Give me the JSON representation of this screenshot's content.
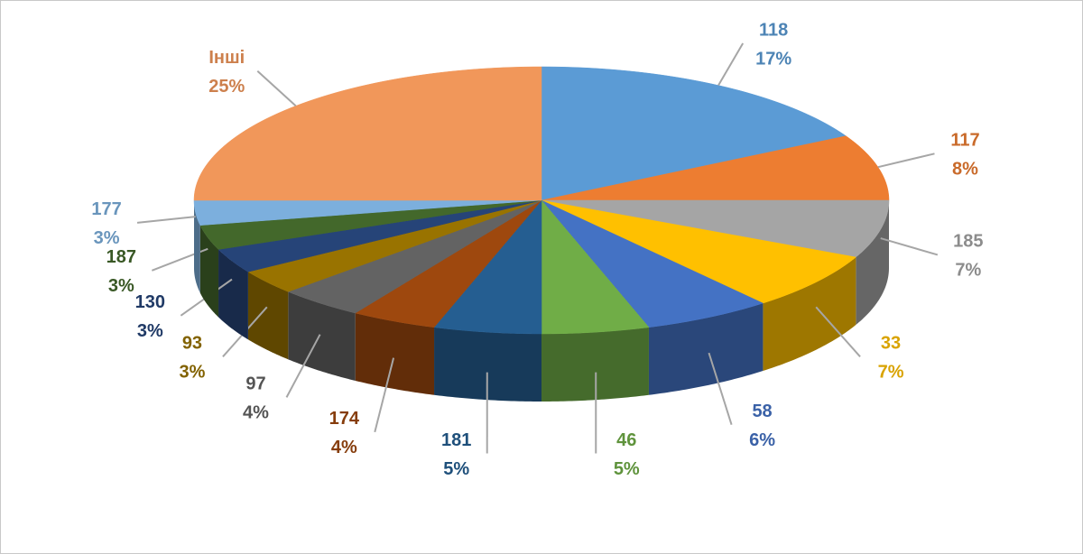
{
  "chart_data": {
    "type": "pie",
    "categories": [
      "118",
      "117",
      "185",
      "33",
      "58",
      "46",
      "181",
      "174",
      "97",
      "93",
      "130",
      "187",
      "177",
      "Інші"
    ],
    "values": [
      17,
      8,
      7,
      7,
      6,
      5,
      5,
      4,
      4,
      3,
      3,
      3,
      3,
      25
    ],
    "value_labels": [
      "17%",
      "8%",
      "7%",
      "7%",
      "6%",
      "5%",
      "5%",
      "4%",
      "4%",
      "3%",
      "3%",
      "3%",
      "3%",
      "25%"
    ],
    "colors": [
      "#5b9bd5",
      "#ed7d31",
      "#a5a5a5",
      "#ffc000",
      "#4472c4",
      "#70ad47",
      "#255e91",
      "#9e480e",
      "#636363",
      "#997300",
      "#264478",
      "#43682b",
      "#7cafdd",
      "#f1975a"
    ]
  }
}
